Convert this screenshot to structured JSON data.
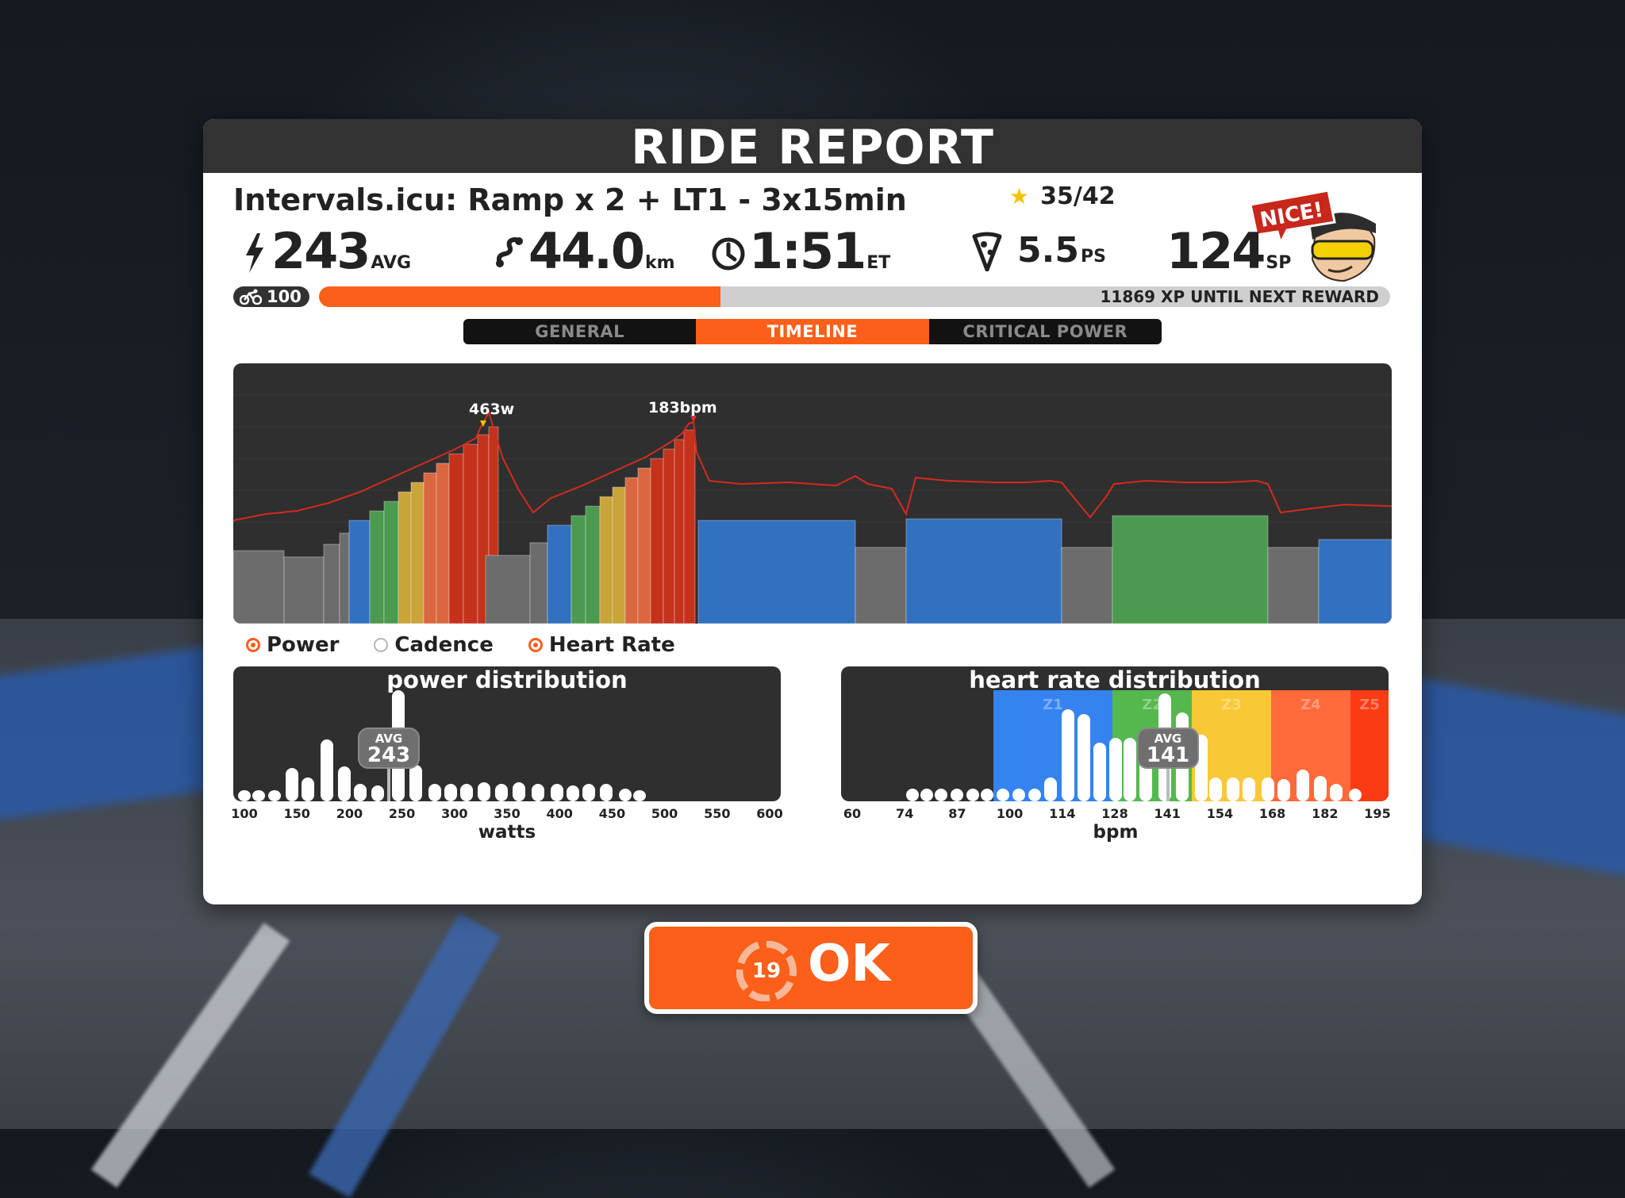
{
  "panel": {
    "title": "RIDE REPORT",
    "workout_title": "Intervals.icu: Ramp x 2 + LT1 - 3x15min",
    "stars": "35/42",
    "badge_text": "NICE!"
  },
  "stats": {
    "power": {
      "value": "243",
      "unit": "AVG",
      "icon": "lightning-icon"
    },
    "distance": {
      "value": "44.0",
      "unit": "km",
      "icon": "route-icon"
    },
    "time": {
      "value": "1:51",
      "unit": "ET",
      "icon": "clock-icon"
    },
    "pizza": {
      "value": "5.5",
      "unit": "PS",
      "icon": "pizza-icon"
    },
    "sport": {
      "value": "124",
      "unit": "SP"
    }
  },
  "xp": {
    "level": "100",
    "progress": 0.375,
    "text": "11869 XP UNTIL NEXT REWARD"
  },
  "tabs": [
    {
      "label": "GENERAL",
      "active": false
    },
    {
      "label": "TIMELINE",
      "active": true
    },
    {
      "label": "CRITICAL POWER",
      "active": false
    }
  ],
  "timeline": {
    "peak_power_label": "463w",
    "peak_hr_label": "183bpm"
  },
  "legend": [
    {
      "label": "Power",
      "on": true
    },
    {
      "label": "Cadence",
      "on": false
    },
    {
      "label": "Heart Rate",
      "on": true
    }
  ],
  "power_dist": {
    "title": "power distribution",
    "avg_label": "AVG",
    "avg_value": "243",
    "axis": "watts",
    "ticks": [
      "100",
      "150",
      "200",
      "250",
      "300",
      "350",
      "400",
      "450",
      "500",
      "550",
      "600"
    ]
  },
  "hr_dist": {
    "title": "heart rate distribution",
    "avg_label": "AVG",
    "avg_value": "141",
    "axis": "bpm",
    "ticks": [
      "60",
      "74",
      "87",
      "100",
      "114",
      "128",
      "141",
      "154",
      "168",
      "182",
      "195"
    ],
    "zones": [
      "Z1",
      "Z2",
      "Z3",
      "Z4",
      "Z5"
    ]
  },
  "ok_button": {
    "label": "OK",
    "countdown": "19"
  },
  "colors": {
    "accent": "#fb5f19",
    "z_gray": "#6c6c6c",
    "z_blue": "#3270c0",
    "z_green": "#4b9a4f",
    "z_yellow": "#c8a43b",
    "z_orange": "#d9673f",
    "z_red": "#c4321c"
  }
}
